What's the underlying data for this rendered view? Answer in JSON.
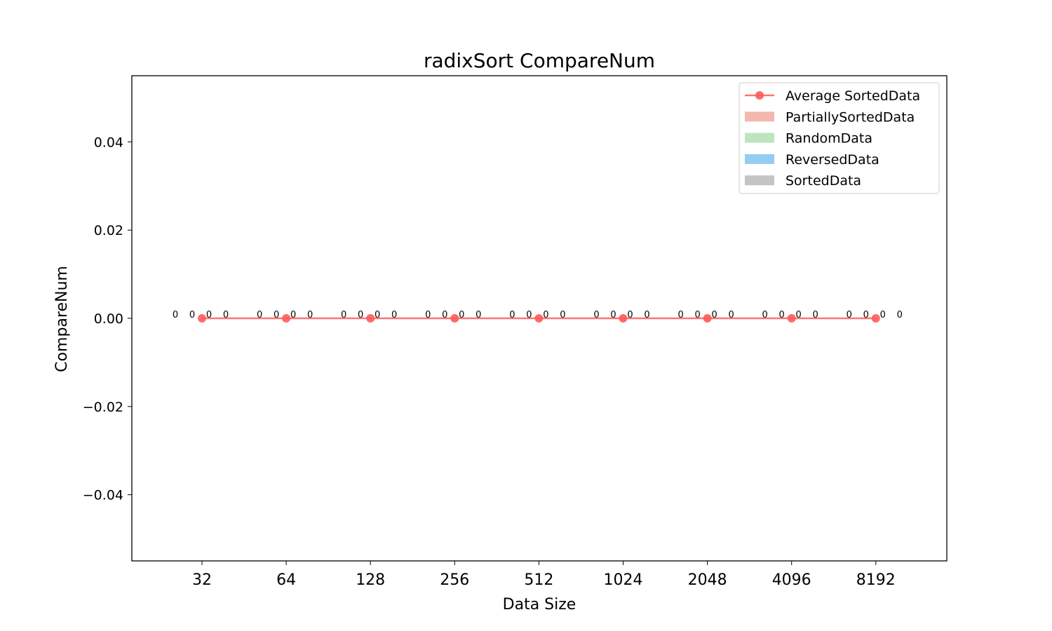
{
  "chart_data": {
    "type": "bar",
    "title": "radixSort CompareNum",
    "xlabel": "Data Size",
    "ylabel": "CompareNum",
    "categories": [
      "32",
      "64",
      "128",
      "256",
      "512",
      "1024",
      "2048",
      "4096",
      "8192"
    ],
    "ylim": [
      -0.055,
      0.055
    ],
    "yticks": [
      "−0.04",
      "−0.02",
      "0.00",
      "0.02",
      "0.04"
    ],
    "ytick_values": [
      -0.04,
      -0.02,
      0.0,
      0.02,
      0.04
    ],
    "grid": false,
    "legend_position": "top-right",
    "bar_series": [
      {
        "name": "PartiallySortedData",
        "color": "#f2b8ae",
        "values": [
          0,
          0,
          0,
          0,
          0,
          0,
          0,
          0,
          0
        ],
        "value_labels": [
          "0",
          "0",
          "0",
          "0",
          "0",
          "0",
          "0",
          "0",
          "0"
        ]
      },
      {
        "name": "RandomData",
        "color": "#bde3bf",
        "values": [
          0,
          0,
          0,
          0,
          0,
          0,
          0,
          0,
          0
        ],
        "value_labels": [
          "0",
          "0",
          "0",
          "0",
          "0",
          "0",
          "0",
          "0",
          "0"
        ]
      },
      {
        "name": "ReversedData",
        "color": "#93cdf2",
        "values": [
          0,
          0,
          0,
          0,
          0,
          0,
          0,
          0,
          0
        ],
        "value_labels": [
          "0",
          "0",
          "0",
          "0",
          "0",
          "0",
          "0",
          "0",
          "0"
        ]
      },
      {
        "name": "SortedData",
        "color": "#c4c4c4",
        "values": [
          0,
          0,
          0,
          0,
          0,
          0,
          0,
          0,
          0
        ],
        "value_labels": [
          "0",
          "0",
          "0",
          "0",
          "0",
          "0",
          "0",
          "0",
          "0"
        ]
      }
    ],
    "line_series": {
      "name": "Average SortedData",
      "color": "#ff5a5a",
      "values": [
        0,
        0,
        0,
        0,
        0,
        0,
        0,
        0,
        0
      ]
    }
  }
}
